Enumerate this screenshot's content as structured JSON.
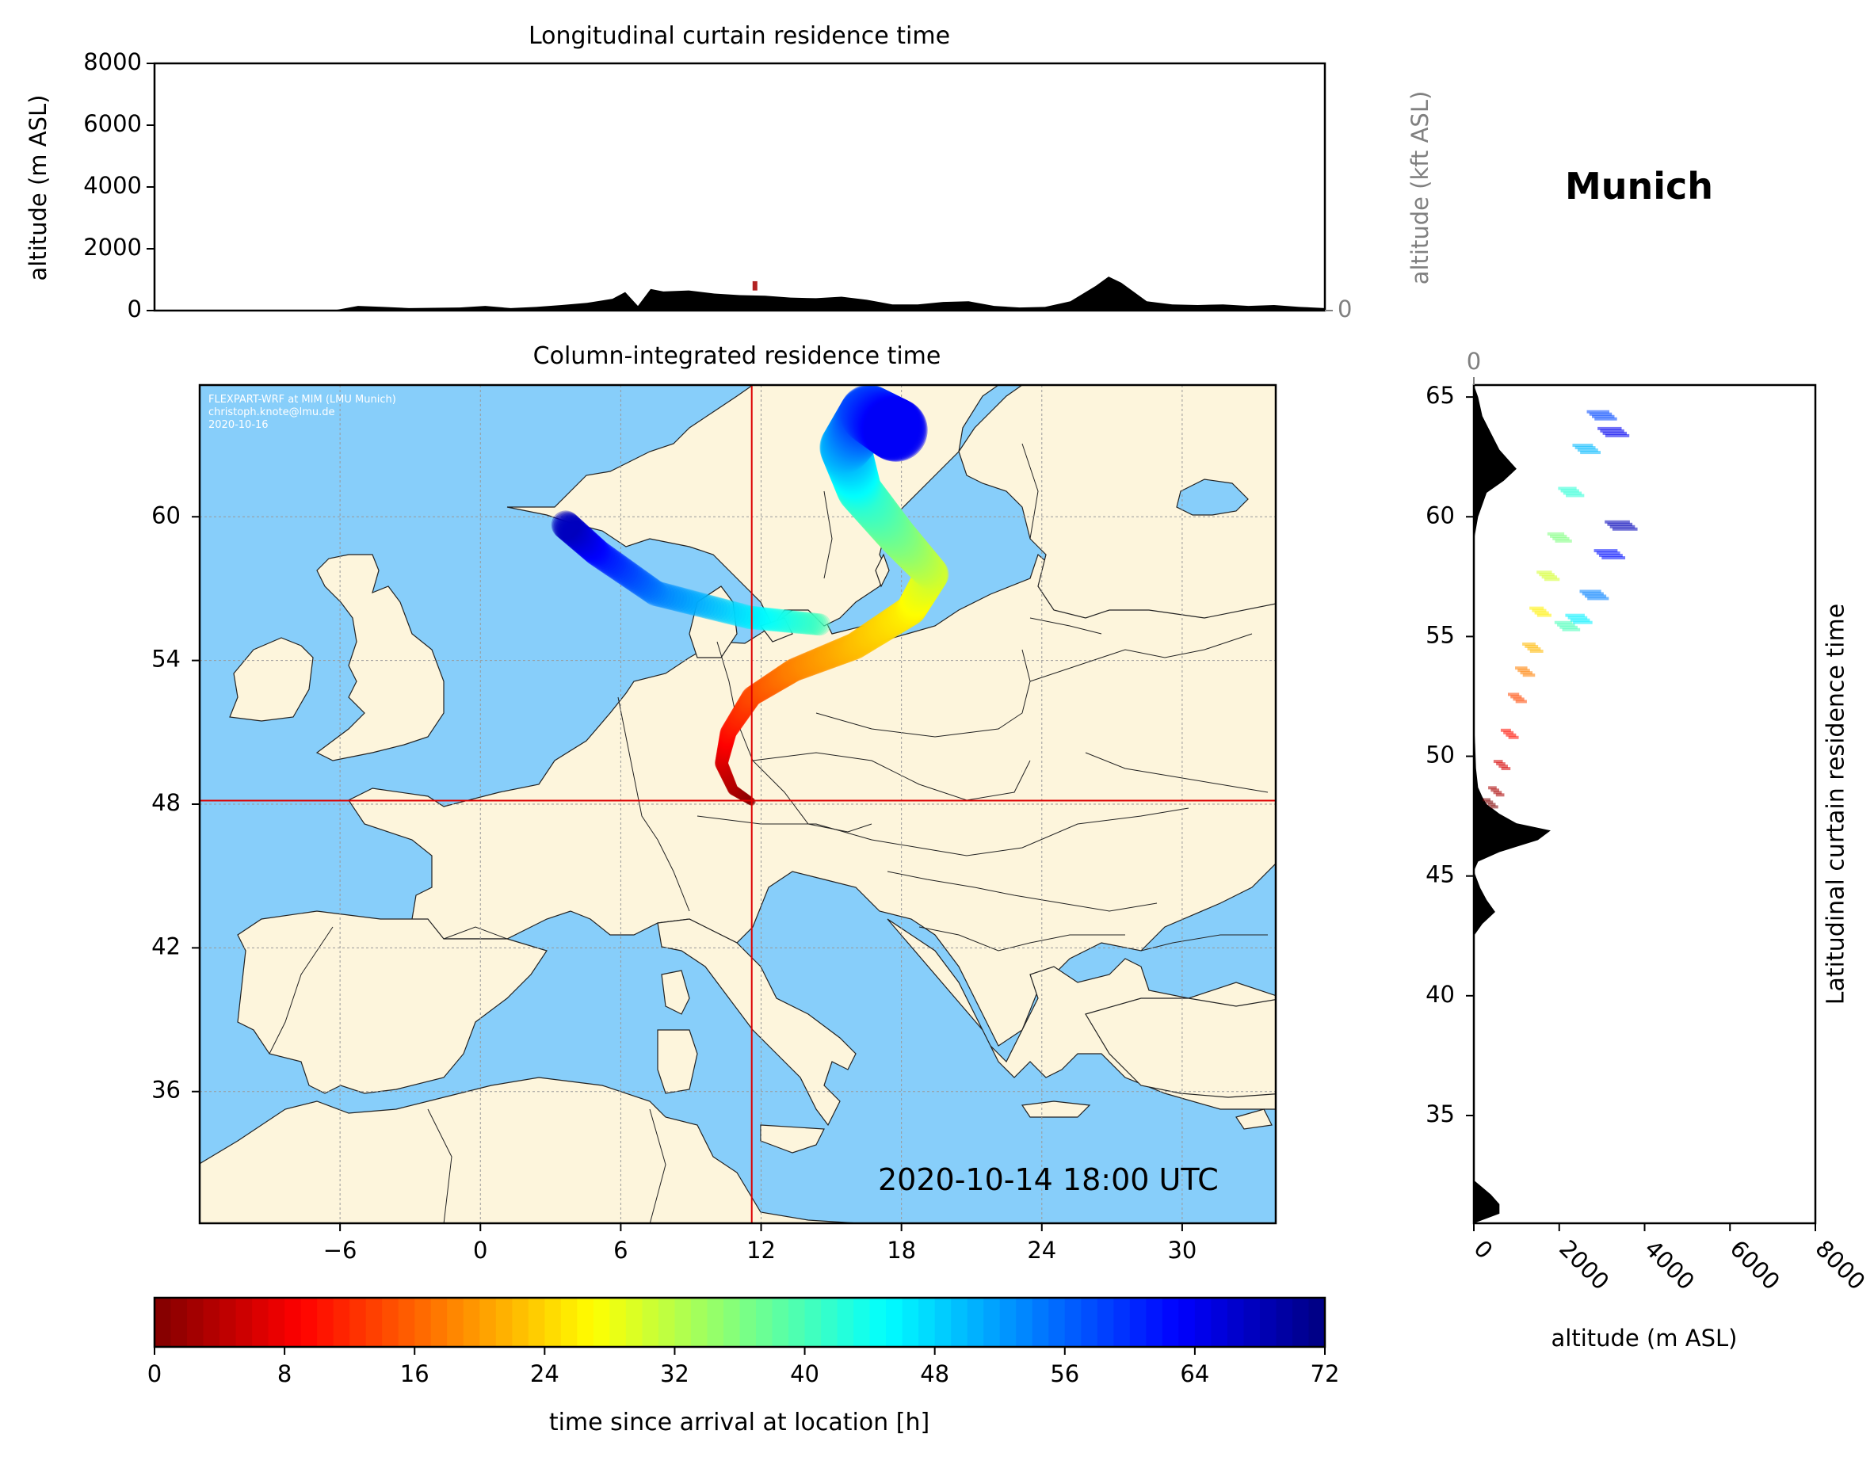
{
  "figure": {
    "station_name": "Munich",
    "timestamp": "2020-10-14 18:00 UTC",
    "credit_lines": [
      "FLEXPART-WRF at MIM (LMU Munich)",
      "christoph.knote@lmu.de",
      "2020-10-16"
    ],
    "colors": {
      "ocean": "#87cefa",
      "land": "#fdf5dc",
      "crosshair": "#dd0000",
      "terrain": "#000000",
      "grid": "#999999",
      "secondary_axis": "#808080"
    }
  },
  "chart_data": [
    {
      "type": "area",
      "title": "Longitudinal curtain residence time",
      "ylabel": "altitude (m ASL)",
      "ylim": [
        0,
        8000
      ],
      "yticks": [
        0,
        2000,
        4000,
        6000,
        8000
      ],
      "secondary_ylabel": "altitude (kft ASL)",
      "secondary_yticks": [
        0,
        50,
        100
      ],
      "xlim": [
        -12,
        34
      ],
      "series": [
        {
          "x": [
            -12,
            -5,
            -4,
            -3,
            -2,
            0,
            1,
            2,
            3,
            4,
            5,
            6,
            6.5,
            7,
            7.5,
            8,
            9,
            10,
            11,
            12,
            13,
            14,
            15,
            16,
            17,
            18,
            19,
            20,
            21,
            22,
            23,
            24,
            25,
            25.5,
            26,
            27,
            28,
            29,
            30,
            31,
            32,
            33,
            34
          ],
          "y": [
            0,
            0,
            150,
            120,
            80,
            100,
            150,
            80,
            120,
            180,
            250,
            380,
            600,
            150,
            700,
            620,
            650,
            550,
            500,
            480,
            420,
            400,
            450,
            350,
            200,
            200,
            280,
            300,
            150,
            100,
            120,
            300,
            800,
            1100,
            900,
            300,
            200,
            180,
            200,
            150,
            180,
            120,
            80
          ]
        }
      ]
    },
    {
      "type": "heatmap",
      "title": "Column-integrated residence time",
      "xticks": [
        -6,
        0,
        6,
        12,
        18,
        24,
        30
      ],
      "yticks": [
        36,
        42,
        48,
        54,
        60
      ],
      "xlim": [
        -12,
        34
      ],
      "ylim": [
        30.5,
        65.5
      ],
      "release_point": {
        "lon": 11.6,
        "lat": 48.15
      },
      "colorbar": {
        "label": "time since arrival at location [h]",
        "ticks": [
          0,
          8,
          16,
          24,
          32,
          40,
          48,
          56,
          64,
          72
        ],
        "range": [
          0,
          72
        ],
        "colormap": "jet_r"
      },
      "plume_trajectory": [
        {
          "lon": 11.6,
          "lat": 48.1,
          "hours": 0
        },
        {
          "lon": 10.8,
          "lat": 48.6,
          "hours": 3
        },
        {
          "lon": 10.3,
          "lat": 49.7,
          "hours": 6
        },
        {
          "lon": 10.6,
          "lat": 51.0,
          "hours": 10
        },
        {
          "lon": 11.6,
          "lat": 52.5,
          "hours": 14
        },
        {
          "lon": 13.4,
          "lat": 53.6,
          "hours": 18
        },
        {
          "lon": 16.0,
          "lat": 54.6,
          "hours": 22
        },
        {
          "lon": 18.4,
          "lat": 56.1,
          "hours": 26
        },
        {
          "lon": 19.3,
          "lat": 57.6,
          "hours": 30
        },
        {
          "lon": 17.8,
          "lat": 59.2,
          "hours": 36
        },
        {
          "lon": 16.2,
          "lat": 61.1,
          "hours": 42
        },
        {
          "lon": 15.6,
          "lat": 62.9,
          "hours": 50
        },
        {
          "lon": 16.6,
          "lat": 64.3,
          "hours": 58
        },
        {
          "lon": 17.8,
          "lat": 63.6,
          "hours": 64
        }
      ],
      "secondary_plume": [
        {
          "lon": 14.5,
          "lat": 55.5,
          "hours": 40
        },
        {
          "lon": 11.5,
          "lat": 55.8,
          "hours": 46
        },
        {
          "lon": 7.5,
          "lat": 56.8,
          "hours": 54
        },
        {
          "lon": 5.0,
          "lat": 58.5,
          "hours": 62
        },
        {
          "lon": 3.6,
          "lat": 59.7,
          "hours": 68
        }
      ]
    },
    {
      "type": "area",
      "title": "Latitudinal curtain residence time",
      "xlabel": "altitude (m ASL)",
      "xlim": [
        0,
        8000
      ],
      "xticks": [
        0,
        2000,
        4000,
        6000,
        8000
      ],
      "secondary_xticks": [
        0,
        50,
        100
      ],
      "ylim": [
        30.5,
        65.5
      ],
      "yticks": [
        35,
        40,
        45,
        50,
        55,
        60,
        65
      ],
      "series": [
        {
          "lat": [
            30.5,
            30.9,
            31.3,
            31.7,
            32.0,
            32.3,
            42.5,
            43.0,
            43.5,
            44.0,
            44.5,
            45.2,
            45.6,
            46.0,
            46.5,
            46.9,
            47.2,
            47.6,
            48.0,
            48.3,
            48.7,
            49.5,
            50.5,
            51.5,
            59.0,
            60.0,
            61.0,
            61.5,
            62.0,
            62.4,
            62.8,
            63.5,
            64.2,
            65.0,
            65.5
          ],
          "altitude": [
            0,
            600,
            600,
            400,
            200,
            0,
            0,
            200,
            500,
            300,
            150,
            0,
            100,
            600,
            1500,
            1800,
            1000,
            600,
            300,
            200,
            100,
            50,
            30,
            0,
            0,
            100,
            300,
            700,
            1000,
            800,
            600,
            400,
            200,
            100,
            0
          ]
        }
      ]
    }
  ]
}
